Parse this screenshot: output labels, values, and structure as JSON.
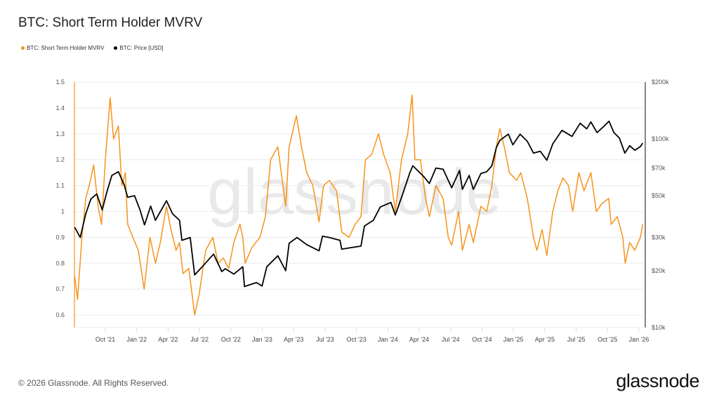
{
  "title": "BTC: Short Term Holder MVRV",
  "footer": "© 2026 Glassnode. All Rights Reserved.",
  "logo_text": "glassnode",
  "watermark": "glassnode",
  "colors": {
    "mvrv": "#f7931a",
    "price": "#000000",
    "grid": "#ececec"
  },
  "chart_data": {
    "type": "line",
    "title": "BTC: Short Term Holder MVRV",
    "legend_position": "top-left",
    "grid": true,
    "x_ticks": [
      "Oct '21",
      "Jan '22",
      "Apr '22",
      "Jul '22",
      "Oct '22",
      "Jan '23",
      "Apr '23",
      "Jul '23",
      "Oct '23",
      "Jan '24",
      "Apr '24",
      "Jul '24",
      "Oct '24",
      "Jan '25",
      "Apr '25",
      "Jul '25",
      "Oct '25",
      "Jan '26"
    ],
    "y_left": {
      "scale": "linear",
      "range": [
        0.55,
        1.5
      ],
      "ticks": [
        "1.5",
        "1.4",
        "1.3",
        "1.2",
        "1.1",
        "1",
        "0.9",
        "0.8",
        "0.7",
        "0.6"
      ],
      "tick_values": [
        1.5,
        1.4,
        1.3,
        1.2,
        1.1,
        1.0,
        0.9,
        0.8,
        0.7,
        0.6
      ]
    },
    "y_right": {
      "scale": "log",
      "range": [
        10000,
        200000
      ],
      "ticks": [
        "$200k",
        "$100k",
        "$70k",
        "$50k",
        "$30k",
        "$20k",
        "$10k"
      ],
      "tick_values": [
        200000,
        100000,
        70000,
        50000,
        30000,
        20000,
        10000
      ]
    },
    "series": [
      {
        "name": "BTC: Short Term Holder MVRV",
        "axis": "left",
        "color": "#f7931a",
        "points": [
          [
            "2021-07-04",
            0.75
          ],
          [
            "2021-07-12",
            0.66
          ],
          [
            "2021-07-25",
            0.9
          ],
          [
            "2021-08-05",
            1.05
          ],
          [
            "2021-08-15",
            1.1
          ],
          [
            "2021-08-28",
            1.18
          ],
          [
            "2021-09-10",
            1.02
          ],
          [
            "2021-09-20",
            0.95
          ],
          [
            "2021-10-01",
            1.2
          ],
          [
            "2021-10-15",
            1.44
          ],
          [
            "2021-10-25",
            1.28
          ],
          [
            "2021-11-08",
            1.33
          ],
          [
            "2021-11-18",
            1.1
          ],
          [
            "2021-11-28",
            1.15
          ],
          [
            "2021-12-05",
            0.95
          ],
          [
            "2021-12-20",
            0.9
          ],
          [
            "2022-01-05",
            0.85
          ],
          [
            "2022-01-22",
            0.7
          ],
          [
            "2022-02-08",
            0.9
          ],
          [
            "2022-02-24",
            0.8
          ],
          [
            "2022-03-10",
            0.88
          ],
          [
            "2022-03-28",
            1.02
          ],
          [
            "2022-04-10",
            0.93
          ],
          [
            "2022-04-25",
            0.85
          ],
          [
            "2022-05-05",
            0.88
          ],
          [
            "2022-05-15",
            0.76
          ],
          [
            "2022-06-01",
            0.78
          ],
          [
            "2022-06-18",
            0.6
          ],
          [
            "2022-07-01",
            0.68
          ],
          [
            "2022-07-20",
            0.85
          ],
          [
            "2022-08-10",
            0.9
          ],
          [
            "2022-08-25",
            0.8
          ],
          [
            "2022-09-10",
            0.82
          ],
          [
            "2022-09-25",
            0.78
          ],
          [
            "2022-10-10",
            0.88
          ],
          [
            "2022-10-28",
            0.95
          ],
          [
            "2022-11-05",
            0.9
          ],
          [
            "2022-11-12",
            0.8
          ],
          [
            "2022-12-01",
            0.86
          ],
          [
            "2022-12-25",
            0.9
          ],
          [
            "2023-01-10",
            0.98
          ],
          [
            "2023-01-25",
            1.2
          ],
          [
            "2023-02-15",
            1.25
          ],
          [
            "2023-03-10",
            1.02
          ],
          [
            "2023-03-20",
            1.25
          ],
          [
            "2023-04-10",
            1.37
          ],
          [
            "2023-04-25",
            1.25
          ],
          [
            "2023-05-10",
            1.15
          ],
          [
            "2023-05-28",
            1.1
          ],
          [
            "2023-06-15",
            0.96
          ],
          [
            "2023-06-28",
            1.1
          ],
          [
            "2023-07-15",
            1.12
          ],
          [
            "2023-08-05",
            1.08
          ],
          [
            "2023-08-20",
            0.92
          ],
          [
            "2023-09-10",
            0.9
          ],
          [
            "2023-09-28",
            0.95
          ],
          [
            "2023-10-15",
            0.98
          ],
          [
            "2023-10-28",
            1.2
          ],
          [
            "2023-11-15",
            1.22
          ],
          [
            "2023-12-05",
            1.3
          ],
          [
            "2023-12-20",
            1.22
          ],
          [
            "2024-01-08",
            1.15
          ],
          [
            "2024-01-23",
            1.0
          ],
          [
            "2024-02-10",
            1.2
          ],
          [
            "2024-02-28",
            1.3
          ],
          [
            "2024-03-12",
            1.45
          ],
          [
            "2024-03-20",
            1.2
          ],
          [
            "2024-04-05",
            1.2
          ],
          [
            "2024-04-20",
            1.05
          ],
          [
            "2024-05-01",
            0.98
          ],
          [
            "2024-05-20",
            1.1
          ],
          [
            "2024-06-10",
            1.05
          ],
          [
            "2024-06-25",
            0.9
          ],
          [
            "2024-07-05",
            0.87
          ],
          [
            "2024-07-25",
            1.0
          ],
          [
            "2024-08-05",
            0.85
          ],
          [
            "2024-08-25",
            0.95
          ],
          [
            "2024-09-06",
            0.88
          ],
          [
            "2024-09-28",
            1.02
          ],
          [
            "2024-10-15",
            1.0
          ],
          [
            "2024-10-30",
            1.1
          ],
          [
            "2024-11-12",
            1.25
          ],
          [
            "2024-11-22",
            1.32
          ],
          [
            "2024-12-05",
            1.25
          ],
          [
            "2024-12-20",
            1.15
          ],
          [
            "2025-01-10",
            1.12
          ],
          [
            "2025-01-22",
            1.15
          ],
          [
            "2025-02-10",
            1.05
          ],
          [
            "2025-02-28",
            0.9
          ],
          [
            "2025-03-10",
            0.85
          ],
          [
            "2025-03-25",
            0.93
          ],
          [
            "2025-04-08",
            0.83
          ],
          [
            "2025-04-25",
            1.0
          ],
          [
            "2025-05-10",
            1.08
          ],
          [
            "2025-05-25",
            1.13
          ],
          [
            "2025-06-10",
            1.1
          ],
          [
            "2025-06-22",
            1.0
          ],
          [
            "2025-07-10",
            1.15
          ],
          [
            "2025-07-25",
            1.08
          ],
          [
            "2025-08-14",
            1.15
          ],
          [
            "2025-08-30",
            1.0
          ],
          [
            "2025-09-15",
            1.03
          ],
          [
            "2025-10-05",
            1.05
          ],
          [
            "2025-10-12",
            0.95
          ],
          [
            "2025-10-30",
            0.98
          ],
          [
            "2025-11-15",
            0.9
          ],
          [
            "2025-11-22",
            0.8
          ],
          [
            "2025-12-05",
            0.88
          ],
          [
            "2025-12-20",
            0.85
          ],
          [
            "2026-01-05",
            0.9
          ],
          [
            "2026-01-12",
            0.95
          ]
        ]
      },
      {
        "name": "BTC: Price [USD]",
        "axis": "right",
        "color": "#000000",
        "points": [
          [
            "2021-07-04",
            34000
          ],
          [
            "2021-07-20",
            30000
          ],
          [
            "2021-08-05",
            40000
          ],
          [
            "2021-08-20",
            48000
          ],
          [
            "2021-09-06",
            51000
          ],
          [
            "2021-09-22",
            42000
          ],
          [
            "2021-10-05",
            52000
          ],
          [
            "2021-10-20",
            64000
          ],
          [
            "2021-11-08",
            67000
          ],
          [
            "2021-11-25",
            57000
          ],
          [
            "2021-12-05",
            49000
          ],
          [
            "2021-12-25",
            50000
          ],
          [
            "2022-01-10",
            42000
          ],
          [
            "2022-01-23",
            35000
          ],
          [
            "2022-02-10",
            44000
          ],
          [
            "2022-02-24",
            37000
          ],
          [
            "2022-03-28",
            47000
          ],
          [
            "2022-04-15",
            40000
          ],
          [
            "2022-05-05",
            37000
          ],
          [
            "2022-05-12",
            29000
          ],
          [
            "2022-06-05",
            30000
          ],
          [
            "2022-06-18",
            19000
          ],
          [
            "2022-07-10",
            21000
          ],
          [
            "2022-08-12",
            24500
          ],
          [
            "2022-09-05",
            19800
          ],
          [
            "2022-09-15",
            20500
          ],
          [
            "2022-10-10",
            19200
          ],
          [
            "2022-11-05",
            21000
          ],
          [
            "2022-11-10",
            16500
          ],
          [
            "2022-12-15",
            17300
          ],
          [
            "2022-12-31",
            16600
          ],
          [
            "2023-01-14",
            21000
          ],
          [
            "2023-02-15",
            24000
          ],
          [
            "2023-03-10",
            20000
          ],
          [
            "2023-03-20",
            28000
          ],
          [
            "2023-04-12",
            30000
          ],
          [
            "2023-05-10",
            27500
          ],
          [
            "2023-06-15",
            25500
          ],
          [
            "2023-06-25",
            30500
          ],
          [
            "2023-07-15",
            30000
          ],
          [
            "2023-08-15",
            29000
          ],
          [
            "2023-08-20",
            26000
          ],
          [
            "2023-09-15",
            26500
          ],
          [
            "2023-10-15",
            27000
          ],
          [
            "2023-10-25",
            34500
          ],
          [
            "2023-11-20",
            37000
          ],
          [
            "2023-12-10",
            43500
          ],
          [
            "2024-01-10",
            46000
          ],
          [
            "2024-01-23",
            39500
          ],
          [
            "2024-02-15",
            52000
          ],
          [
            "2024-03-05",
            66000
          ],
          [
            "2024-03-14",
            72000
          ],
          [
            "2024-04-15",
            63000
          ],
          [
            "2024-05-01",
            58000
          ],
          [
            "2024-05-20",
            70000
          ],
          [
            "2024-06-10",
            69000
          ],
          [
            "2024-07-05",
            55000
          ],
          [
            "2024-07-28",
            68000
          ],
          [
            "2024-08-05",
            54000
          ],
          [
            "2024-08-25",
            64000
          ],
          [
            "2024-09-06",
            54000
          ],
          [
            "2024-09-28",
            65500
          ],
          [
            "2024-10-15",
            67000
          ],
          [
            "2024-10-30",
            72000
          ],
          [
            "2024-11-12",
            90000
          ],
          [
            "2024-11-22",
            98000
          ],
          [
            "2024-12-17",
            106000
          ],
          [
            "2024-12-30",
            93000
          ],
          [
            "2025-01-20",
            106000
          ],
          [
            "2025-02-10",
            97000
          ],
          [
            "2025-02-28",
            84000
          ],
          [
            "2025-03-20",
            86000
          ],
          [
            "2025-04-08",
            77000
          ],
          [
            "2025-04-25",
            94000
          ],
          [
            "2025-05-22",
            111000
          ],
          [
            "2025-06-20",
            103000
          ],
          [
            "2025-07-14",
            121000
          ],
          [
            "2025-08-02",
            113000
          ],
          [
            "2025-08-14",
            123000
          ],
          [
            "2025-09-01",
            108000
          ],
          [
            "2025-09-20",
            116000
          ],
          [
            "2025-10-06",
            124000
          ],
          [
            "2025-10-20",
            108000
          ],
          [
            "2025-11-05",
            101000
          ],
          [
            "2025-11-21",
            84000
          ],
          [
            "2025-12-05",
            92000
          ],
          [
            "2025-12-20",
            87000
          ],
          [
            "2026-01-05",
            91000
          ],
          [
            "2026-01-12",
            95000
          ]
        ]
      }
    ]
  }
}
